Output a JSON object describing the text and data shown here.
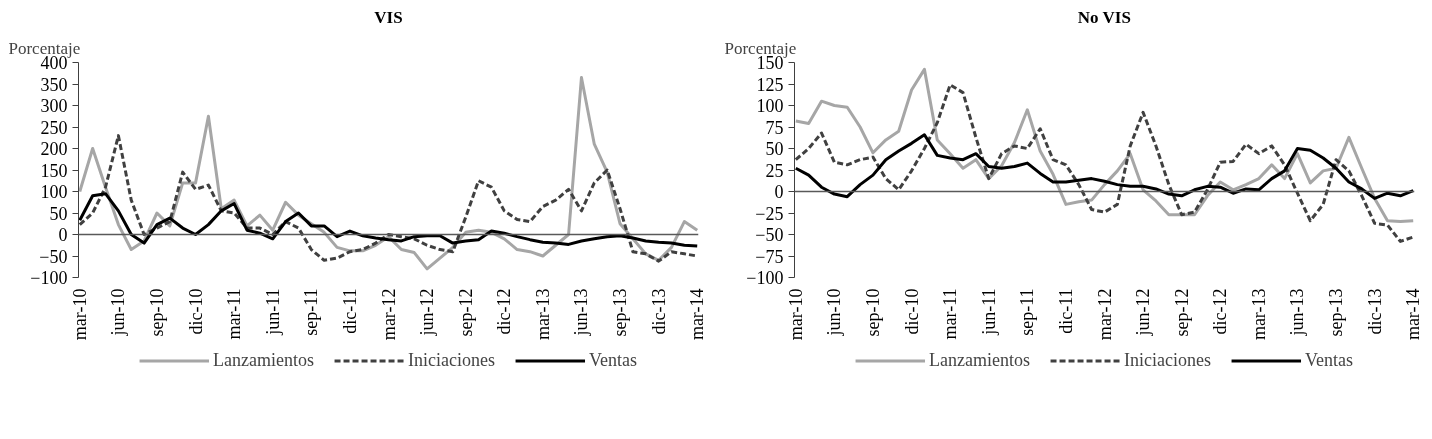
{
  "chart_data": [
    {
      "type": "line",
      "title": "VIS",
      "ylabel": "Porcentaje",
      "categories": [
        "mar-10",
        null,
        null,
        "jun-10",
        null,
        null,
        "sep-10",
        null,
        null,
        "dic-10",
        null,
        null,
        "mar-11",
        null,
        null,
        "jun-11",
        null,
        null,
        "sep-11",
        null,
        null,
        "dic-11",
        null,
        null,
        "mar-12",
        null,
        null,
        "jun-12",
        null,
        null,
        "sep-12",
        null,
        null,
        "dic-12",
        null,
        null,
        "mar-13",
        null,
        null,
        "jun-13",
        null,
        null,
        "sep-13",
        null,
        null,
        "dic-13",
        null,
        null,
        "mar-14"
      ],
      "series": [
        {
          "name": "Lanzamientos",
          "color": "#a6a6a6",
          "line_style": "solid",
          "values": [
            100,
            200,
            110,
            23,
            -35,
            -15,
            50,
            20,
            120,
            120,
            275,
            60,
            80,
            20,
            45,
            10,
            75,
            45,
            25,
            5,
            -30,
            -38,
            -38,
            -25,
            -5,
            -35,
            -42,
            -80,
            -55,
            -30,
            5,
            10,
            5,
            -10,
            -35,
            -40,
            -50,
            -25,
            0,
            365,
            210,
            145,
            25,
            -10,
            -45,
            -60,
            -30,
            30,
            10
          ]
        },
        {
          "name": "Iniciaciones",
          "color": "#404040",
          "line_style": "dashed",
          "values": [
            23,
            50,
            110,
            230,
            80,
            0,
            15,
            30,
            145,
            105,
            115,
            55,
            50,
            15,
            15,
            0,
            30,
            15,
            -35,
            -60,
            -55,
            -40,
            -35,
            -20,
            0,
            -5,
            -10,
            -25,
            -35,
            -40,
            40,
            125,
            110,
            55,
            35,
            30,
            65,
            80,
            105,
            55,
            120,
            150,
            60,
            -40,
            -45,
            -62,
            -40,
            -45,
            -50
          ]
        },
        {
          "name": "Ventas",
          "color": "#000000",
          "line_style": "solid",
          "values": [
            33,
            90,
            95,
            55,
            0,
            -20,
            23,
            38,
            15,
            0,
            23,
            55,
            72,
            10,
            3,
            -10,
            30,
            50,
            20,
            20,
            -5,
            8,
            -3,
            -8,
            -12,
            -15,
            -5,
            -3,
            -3,
            -20,
            -15,
            -12,
            8,
            3,
            -5,
            -12,
            -18,
            -20,
            -23,
            -15,
            -10,
            -5,
            -3,
            -8,
            -15,
            -18,
            -20,
            -25,
            -27
          ]
        }
      ],
      "ylim": [
        -100,
        400
      ],
      "yticks": [
        -100,
        -50,
        0,
        50,
        100,
        150,
        200,
        250,
        300,
        350,
        400
      ],
      "ref_lines": [
        {
          "axis": "y",
          "value": 0,
          "color": "#595959"
        }
      ],
      "grid": false,
      "legend": "bottom"
    },
    {
      "type": "line",
      "title": "No VIS",
      "ylabel": "Porcentaje",
      "categories": [
        "mar-10",
        null,
        null,
        "jun-10",
        null,
        null,
        "sep-10",
        null,
        null,
        "dic-10",
        null,
        null,
        "mar-11",
        null,
        null,
        "jun-11",
        null,
        null,
        "sep-11",
        null,
        null,
        "dic-11",
        null,
        null,
        "mar-12",
        null,
        null,
        "jun-12",
        null,
        null,
        "sep-12",
        null,
        null,
        "dic-12",
        null,
        null,
        "mar-13",
        null,
        null,
        "jun-13",
        null,
        null,
        "sep-13",
        null,
        null,
        "dic-13",
        null,
        null,
        "mar-14"
      ],
      "series": [
        {
          "name": "Lanzamientos",
          "color": "#a6a6a6",
          "line_style": "solid",
          "values": [
            82,
            79,
            105,
            100,
            98,
            75,
            45,
            60,
            70,
            118,
            142,
            60,
            44,
            27,
            37,
            15,
            30,
            57,
            95,
            47,
            20,
            -15,
            -12,
            -10,
            8,
            24,
            44,
            2,
            -11,
            -27,
            -27,
            -27,
            -5,
            11,
            2,
            8,
            15,
            31,
            15,
            44,
            10,
            24,
            27,
            63,
            27,
            -8,
            -34,
            -35,
            -34
          ]
        },
        {
          "name": "Iniciaciones",
          "color": "#404040",
          "line_style": "dashed",
          "values": [
            37,
            50,
            68,
            34,
            31,
            37,
            40,
            15,
            2,
            24,
            50,
            80,
            124,
            115,
            63,
            15,
            44,
            53,
            50,
            73,
            37,
            31,
            8,
            -21,
            -24,
            -15,
            53,
            92,
            53,
            8,
            -27,
            -24,
            2,
            34,
            35,
            55,
            44,
            53,
            31,
            -2,
            -34,
            -15,
            37,
            24,
            -5,
            -37,
            -39,
            -58,
            -53
          ]
        },
        {
          "name": "Ventas",
          "color": "#000000",
          "line_style": "solid",
          "values": [
            27,
            19,
            5,
            -3,
            -6,
            8,
            19,
            37,
            47,
            56,
            66,
            42,
            39,
            37,
            44,
            29,
            27,
            29,
            33,
            21,
            11,
            11,
            13,
            15,
            12,
            8,
            6,
            6,
            3,
            -3,
            -5,
            2,
            6,
            5,
            -2,
            3,
            2,
            15,
            24,
            50,
            48,
            39,
            27,
            11,
            3,
            -8,
            -2,
            -5,
            1
          ]
        }
      ],
      "ylim": [
        -100,
        150
      ],
      "yticks": [
        -100,
        -75,
        -50,
        -25,
        0,
        25,
        50,
        75,
        100,
        125,
        150
      ],
      "ref_lines": [
        {
          "axis": "y",
          "value": 0,
          "color": "#595959"
        }
      ],
      "grid": false,
      "legend": "bottom"
    }
  ]
}
